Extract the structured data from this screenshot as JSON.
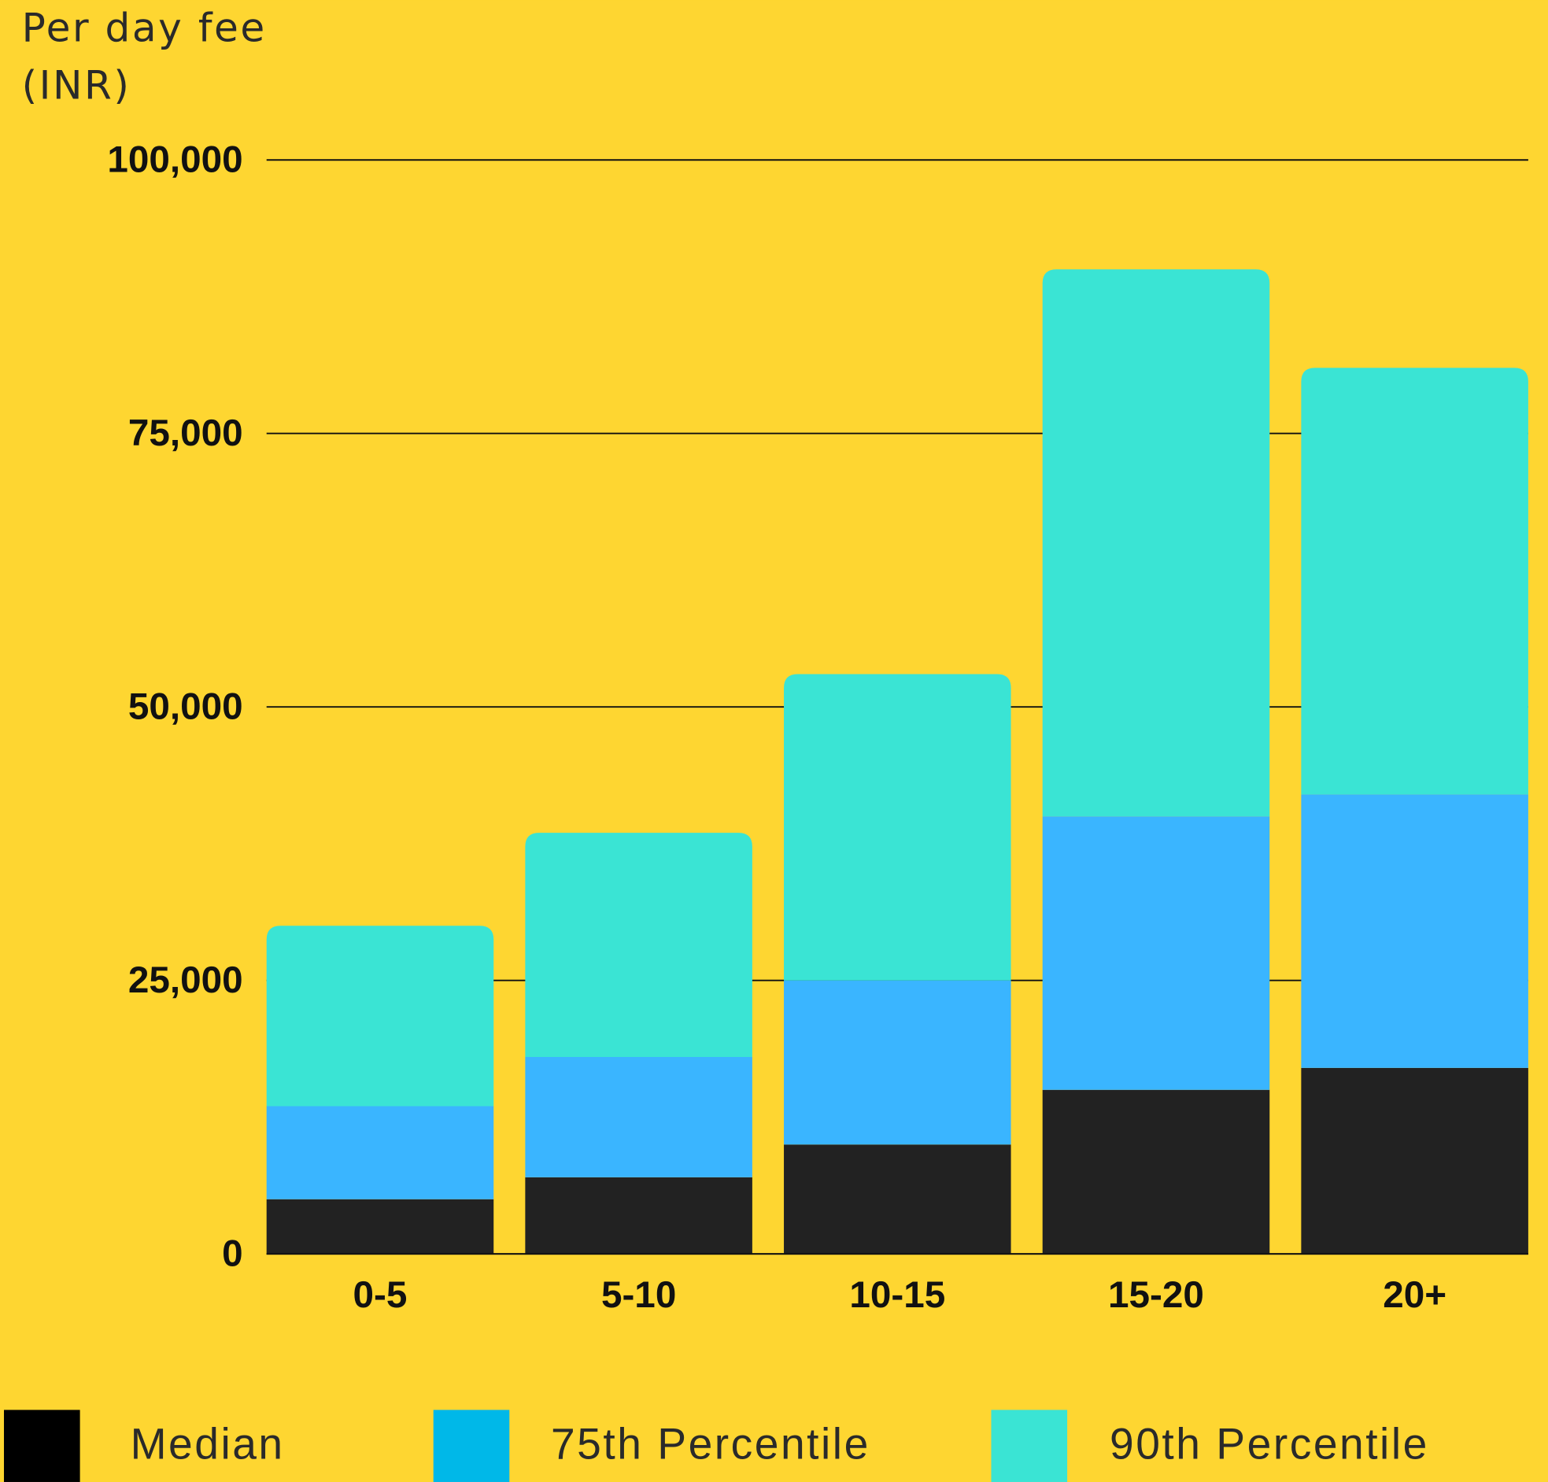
{
  "chart_data": {
    "type": "stacked-bar",
    "y_label": "Per day fee (INR)",
    "categories": [
      "0-5",
      "5-10",
      "10-15",
      "15-20",
      "20+"
    ],
    "series": [
      {
        "name": "Median",
        "color": "#222222",
        "legend_color": "#000000",
        "values": [
          5000,
          7000,
          10000,
          15000,
          17000
        ]
      },
      {
        "name": "75th Percentile",
        "color": "#3ab5ff",
        "legend_color": "#00b8e8",
        "values": [
          8500,
          11000,
          15000,
          25000,
          25000
        ]
      },
      {
        "name": "90th Percentile",
        "color": "#3ae4d4",
        "legend_color": "#3ae4d4",
        "values": [
          16500,
          20500,
          28000,
          50000,
          39000
        ]
      }
    ],
    "ylim": [
      0,
      100000
    ],
    "yticks": [
      0,
      {
        "value": 25000,
        "label": "25,000"
      },
      {
        "value": 50000,
        "label": "50,000"
      },
      {
        "value": 75000,
        "label": "75,000"
      },
      {
        "value": 100000,
        "label": "100,000"
      }
    ],
    "grid": true
  }
}
